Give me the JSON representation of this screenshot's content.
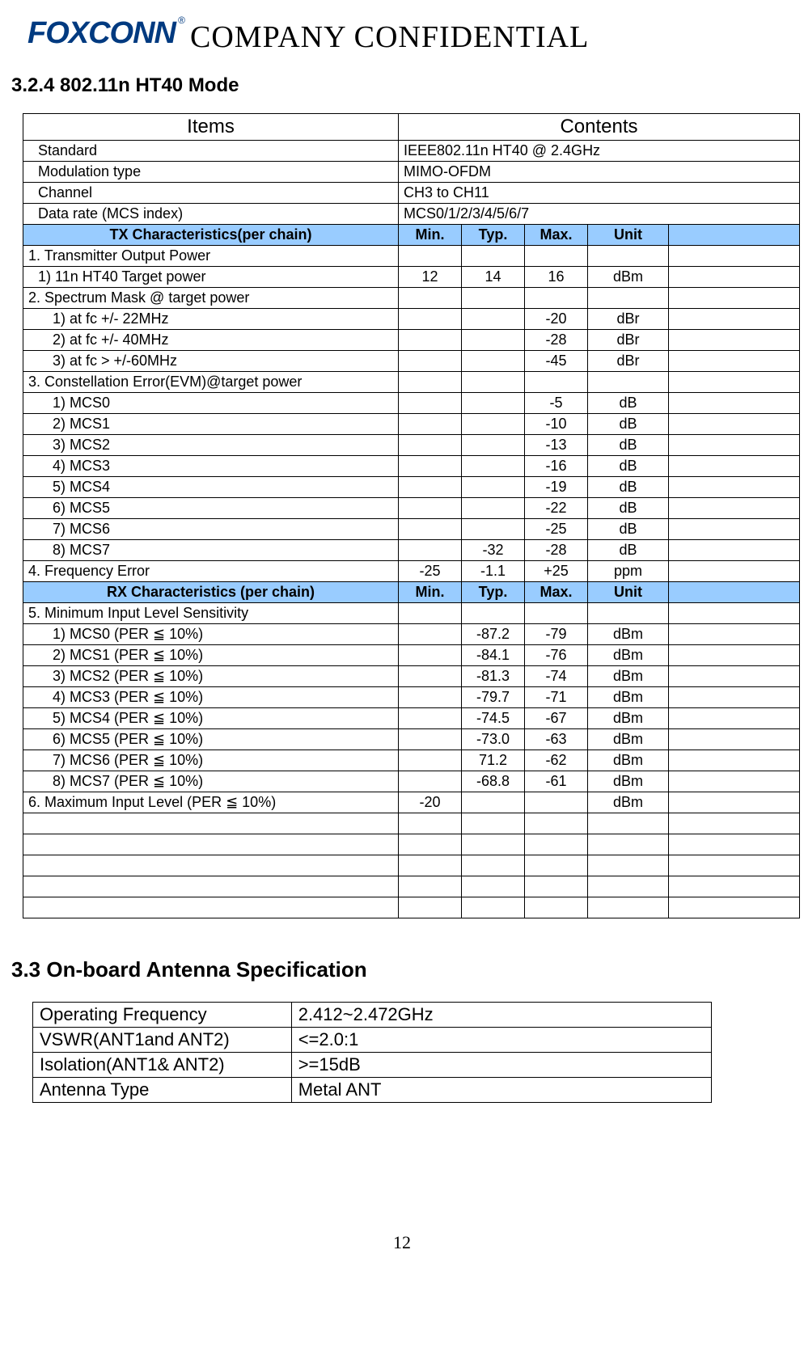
{
  "header": {
    "logo_text": "FOXCONN",
    "reg": "®",
    "confidential": "COMPANY  CONFIDENTIAL"
  },
  "section1": {
    "heading": "3.2.4 802.11n HT40 Mode",
    "table": {
      "colors": {
        "header_bg": "#99ccff",
        "border": "#000000",
        "text": "#000000"
      },
      "items_label": "Items",
      "contents_label": "Contents",
      "info_rows": [
        {
          "label": "Standard",
          "value": "IEEE802.11n HT40 @ 2.4GHz"
        },
        {
          "label": "Modulation type",
          "value": "MIMO-OFDM"
        },
        {
          "label": "Channel",
          "value": "CH3 to CH11"
        },
        {
          "label": "Data rate (MCS index)",
          "value": "MCS0/1/2/3/4/5/6/7"
        }
      ],
      "tx_header": {
        "label": "TX Characteristics(per chain)",
        "min": "Min.",
        "typ": "Typ.",
        "max": "Max.",
        "unit": "Unit"
      },
      "tx_rows": [
        {
          "label": "1. Transmitter Output Power",
          "indent": 0,
          "min": "",
          "typ": "",
          "max": "",
          "unit": ""
        },
        {
          "label": "1) 11n HT40 Target power",
          "indent": 1,
          "min": "12",
          "typ": "14",
          "max": "16",
          "unit": "dBm"
        },
        {
          "label": "2. Spectrum Mask @ target power",
          "indent": 0,
          "min": "",
          "typ": "",
          "max": "",
          "unit": ""
        },
        {
          "label": "1) at fc +/- 22MHz",
          "indent": 2,
          "min": "",
          "typ": "",
          "max": "-20",
          "unit": "dBr"
        },
        {
          "label": "2) at fc +/- 40MHz",
          "indent": 2,
          "min": "",
          "typ": "",
          "max": "-28",
          "unit": "dBr"
        },
        {
          "label": "3) at fc > +/-60MHz",
          "indent": 2,
          "min": "",
          "typ": "",
          "max": "-45",
          "unit": "dBr"
        },
        {
          "label": "3. Constellation Error(EVM)@target power",
          "indent": 0,
          "min": "",
          "typ": "",
          "max": "",
          "unit": ""
        },
        {
          "label": "1) MCS0",
          "indent": 2,
          "min": "",
          "typ": "",
          "max": "-5",
          "unit": "dB"
        },
        {
          "label": "2) MCS1",
          "indent": 2,
          "min": "",
          "typ": "",
          "max": "-10",
          "unit": "dB"
        },
        {
          "label": "3) MCS2",
          "indent": 2,
          "min": "",
          "typ": "",
          "max": "-13",
          "unit": "dB"
        },
        {
          "label": "4) MCS3",
          "indent": 2,
          "min": "",
          "typ": "",
          "max": "-16",
          "unit": "dB"
        },
        {
          "label": "5) MCS4",
          "indent": 2,
          "min": "",
          "typ": "",
          "max": "-19",
          "unit": "dB"
        },
        {
          "label": "6) MCS5",
          "indent": 2,
          "min": "",
          "typ": "",
          "max": "-22",
          "unit": "dB"
        },
        {
          "label": "7) MCS6",
          "indent": 2,
          "min": "",
          "typ": "",
          "max": "-25",
          "unit": "dB"
        },
        {
          "label": "8) MCS7",
          "indent": 2,
          "min": "",
          "typ": "-32",
          "max": "-28",
          "unit": "dB"
        },
        {
          "label": "4. Frequency Error",
          "indent": 0,
          "min": "-25",
          "typ": "-1.1",
          "max": "+25",
          "unit": "ppm"
        }
      ],
      "rx_header": {
        "label": "RX Characteristics (per chain)",
        "min": "Min.",
        "typ": "Typ.",
        "max": "Max.",
        "unit": "Unit"
      },
      "rx_rows": [
        {
          "label": "5. Minimum Input Level Sensitivity",
          "indent": 0,
          "min": "",
          "typ": "",
          "max": "",
          "unit": ""
        },
        {
          "label": "1) MCS0 (PER ≦ 10%)",
          "indent": 2,
          "min": "",
          "typ": "-87.2",
          "max": "-79",
          "unit": "dBm"
        },
        {
          "label": "2) MCS1 (PER ≦ 10%)",
          "indent": 2,
          "min": "",
          "typ": "-84.1",
          "max": "-76",
          "unit": "dBm"
        },
        {
          "label": "3) MCS2 (PER ≦ 10%)",
          "indent": 2,
          "min": "",
          "typ": "-81.3",
          "max": "-74",
          "unit": "dBm"
        },
        {
          "label": "4) MCS3 (PER ≦ 10%)",
          "indent": 2,
          "min": "",
          "typ": "-79.7",
          "max": "-71",
          "unit": "dBm"
        },
        {
          "label": "5) MCS4 (PER ≦ 10%)",
          "indent": 2,
          "min": "",
          "typ": "-74.5",
          "max": "-67",
          "unit": "dBm"
        },
        {
          "label": "6) MCS5 (PER ≦ 10%)",
          "indent": 2,
          "min": "",
          "typ": "-73.0",
          "max": "-63",
          "unit": "dBm"
        },
        {
          "label": "7) MCS6 (PER ≦ 10%)",
          "indent": 2,
          "min": "",
          "typ": "71.2",
          "max": "-62",
          "unit": "dBm"
        },
        {
          "label": "8) MCS7 (PER ≦ 10%)",
          "indent": 2,
          "min": "",
          "typ": "-68.8",
          "max": "-61",
          "unit": "dBm"
        },
        {
          "label": "6. Maximum Input Level (PER ≦ 10%)",
          "indent": 0,
          "min": "-20",
          "typ": "",
          "max": "",
          "unit": "dBm"
        }
      ],
      "blank_row_count": 5
    }
  },
  "section2": {
    "heading": "3.3 On-board Antenna Specification",
    "rows": [
      {
        "label": "Operating Frequency",
        "value": "2.412~2.472GHz"
      },
      {
        "label": "VSWR(ANT1and ANT2)",
        "value": "<=2.0:1"
      },
      {
        "label": "Isolation(ANT1& ANT2)",
        "value": ">=15dB"
      },
      {
        "label": "Antenna Type",
        "value": "Metal ANT"
      }
    ]
  },
  "page_number": "12"
}
